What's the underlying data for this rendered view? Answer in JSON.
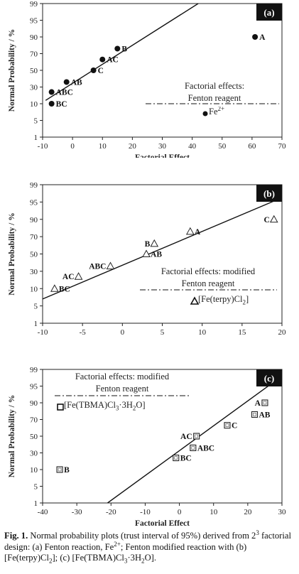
{
  "chart_data": [
    {
      "type": "scatter",
      "panel_label": "(a)",
      "xlabel": "Factorial Effect",
      "ylabel": "Normal Probability / %",
      "xlim": [
        -10,
        70
      ],
      "x_ticks": [
        "-10",
        "0",
        "10",
        "20",
        "30",
        "40",
        "50",
        "60",
        "70"
      ],
      "y_ticks": [
        "1",
        "5",
        "10",
        "30",
        "50",
        "70",
        "90",
        "95",
        "99"
      ],
      "marker": "filled-circle",
      "points": [
        {
          "label": "BC",
          "x": -7,
          "y": 10
        },
        {
          "label": "ABC",
          "x": -7,
          "y": 24
        },
        {
          "label": "AB",
          "x": -2,
          "y": 36
        },
        {
          "label": "C",
          "x": 7,
          "y": 50
        },
        {
          "label": "AC",
          "x": 10,
          "y": 63
        },
        {
          "label": "B",
          "x": 15,
          "y": 76
        },
        {
          "label": "A",
          "x": 61,
          "y": 90
        }
      ],
      "fit_line": [
        [
          -9,
          14
        ],
        [
          42,
          99
        ]
      ],
      "legend": {
        "title_lines": [
          "Factorial effects:",
          "Fenton reagent"
        ],
        "entry_html": "Fe<sup>2+</sup>",
        "entry": "Fe2+"
      }
    },
    {
      "type": "scatter",
      "panel_label": "(b)",
      "xlabel": "Factorial Effect",
      "ylabel": "Normal Probability / %",
      "xlim": [
        -10,
        20
      ],
      "x_ticks": [
        "-10",
        "-5",
        "0",
        "5",
        "10",
        "15",
        "20"
      ],
      "y_ticks": [
        "1",
        "5",
        "10",
        "30",
        "50",
        "70",
        "90",
        "95",
        "99"
      ],
      "marker": "open-triangle",
      "points": [
        {
          "label": "BC",
          "x": -8.5,
          "y": 10
        },
        {
          "label": "AC",
          "x": -5.5,
          "y": 24
        },
        {
          "label": "ABC",
          "x": -1.5,
          "y": 36
        },
        {
          "label": "AB",
          "x": 3,
          "y": 50
        },
        {
          "label": "B",
          "x": 4,
          "y": 62
        },
        {
          "label": "A",
          "x": 8.5,
          "y": 76
        },
        {
          "label": "C",
          "x": 19,
          "y": 90
        }
      ],
      "fit_line": [
        [
          -10,
          7
        ],
        [
          20,
          96
        ]
      ],
      "legend": {
        "title_lines": [
          "Factorial effects: modified",
          "Fenton reagent"
        ],
        "entry_html": "[Fe(terpy)Cl<sub>2</sub>]",
        "entry": "[Fe(terpy)Cl2]"
      }
    },
    {
      "type": "scatter",
      "panel_label": "(c)",
      "xlabel": "Factorial Effect",
      "ylabel": "Normal Probability / %",
      "xlim": [
        -40,
        30
      ],
      "x_ticks": [
        "-40",
        "-30",
        "-20",
        "-10",
        "0",
        "10",
        "20",
        "30"
      ],
      "y_ticks": [
        "1",
        "5",
        "10",
        "30",
        "50",
        "70",
        "90",
        "95",
        "99"
      ],
      "marker": "open-square",
      "points": [
        {
          "label": "B",
          "x": -35,
          "y": 10
        },
        {
          "label": "BC",
          "x": -1,
          "y": 24
        },
        {
          "label": "ABC",
          "x": 4,
          "y": 36
        },
        {
          "label": "AC",
          "x": 5,
          "y": 50
        },
        {
          "label": "C",
          "x": 14,
          "y": 63
        },
        {
          "label": "AB",
          "x": 22,
          "y": 76
        },
        {
          "label": "A",
          "x": 25,
          "y": 90
        }
      ],
      "fit_line": [
        [
          -21,
          1
        ],
        [
          31,
          98
        ]
      ],
      "legend": {
        "title_lines": [
          "Factorial effects: modified",
          "Fenton reagent"
        ],
        "entry_html": "[Fe(TBMA)Cl<sub>3</sub>·3H<sub>2</sub>O]",
        "entry": "[Fe(TBMA)Cl3·3H2O]"
      }
    }
  ],
  "caption": {
    "label": "Fig. 1.",
    "html": "Normal probability plots (trust interval of 95%) derived from 2<sup>3</sup> factorial design: (a) Fenton reaction, Fe<sup>2+</sup>; Fenton modified reaction with (b) [Fe(terpy)Cl<sub>2</sub>]; (c) [Fe(TBMA)Cl<sub>3</sub>·3H<sub>2</sub>O].",
    "text": "Normal probability plots (trust interval of 95%) derived from 23 factorial design: (a) Fenton reaction, Fe2+; Fenton modified reaction with (b) [Fe(terpy)Cl2]; (c) [Fe(TBMA)Cl3·3H2O]."
  }
}
